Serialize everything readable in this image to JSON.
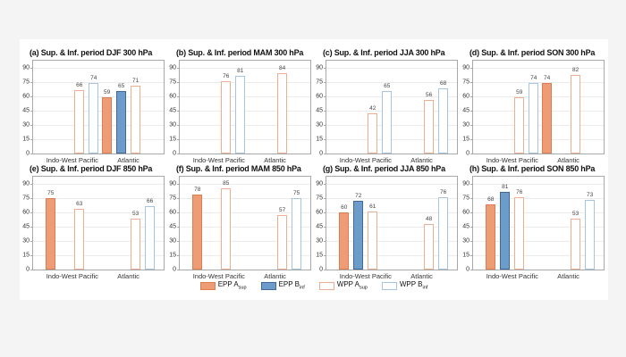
{
  "figure": {
    "page_background": "#f4f4f4",
    "background": "#ffffff"
  },
  "axis": {
    "ylim": [
      0,
      97
    ],
    "yticks": [
      0,
      15,
      30,
      45,
      60,
      75,
      90
    ],
    "categories": [
      "Indo-West Pacific",
      "Atlantic"
    ],
    "grid": true,
    "box_color": "#a8a8a8"
  },
  "series_styles": {
    "EPP A_sup": {
      "fill": "#EE9C76",
      "border": "#DD7E52",
      "filled": true
    },
    "EPP B_inf": {
      "fill": "#6D9BCA",
      "border": "#41689A",
      "filled": true
    },
    "WPP A_sup": {
      "fill": "#FFFFFF",
      "border": "#EFAE8F",
      "filled": false
    },
    "WPP B_inf": {
      "fill": "#FFFFFF",
      "border": "#A6C5E2",
      "filled": false
    }
  },
  "legend": {
    "position": "bottom-center",
    "items": [
      {
        "series": "EPP A_sup",
        "name": "EPP A",
        "subscript": "sup"
      },
      {
        "series": "EPP B_inf",
        "name": "EPP B",
        "subscript": "inf"
      },
      {
        "series": "WPP A_sup",
        "name": "WPP A",
        "subscript": "sup"
      },
      {
        "series": "WPP B_inf",
        "name": "WPP B",
        "subscript": "inf"
      }
    ]
  },
  "chart_data": [
    {
      "id": "a",
      "type": "bar",
      "title": "(a) Sup. & Inf. period DJF 300 hPa",
      "ylim": [
        0,
        97
      ],
      "yticks": [
        0,
        15,
        30,
        45,
        60,
        75,
        90
      ],
      "groups": [
        {
          "category": "Indo-West Pacific",
          "bars": [
            {
              "series": "WPP A_sup",
              "value": 66
            },
            {
              "series": "WPP B_inf",
              "value": 74
            }
          ]
        },
        {
          "category": "Atlantic",
          "bars": [
            {
              "series": "EPP A_sup",
              "value": 59
            },
            {
              "series": "EPP B_inf",
              "value": 65
            },
            {
              "series": "WPP A_sup",
              "value": 71
            }
          ]
        }
      ]
    },
    {
      "id": "b",
      "type": "bar",
      "title": "(b) Sup. & Inf. period MAM 300 hPa",
      "ylim": [
        0,
        97
      ],
      "yticks": [
        0,
        15,
        30,
        45,
        60,
        75,
        90
      ],
      "groups": [
        {
          "category": "Indo-West Pacific",
          "bars": [
            {
              "series": "WPP A_sup",
              "value": 76
            },
            {
              "series": "WPP B_inf",
              "value": 81
            }
          ]
        },
        {
          "category": "Atlantic",
          "bars": [
            {
              "series": "WPP A_sup",
              "value": 84
            }
          ]
        }
      ]
    },
    {
      "id": "c",
      "type": "bar",
      "title": "(c) Sup. & Inf. period JJA 300 hPa",
      "ylim": [
        0,
        97
      ],
      "yticks": [
        0,
        15,
        30,
        45,
        60,
        75,
        90
      ],
      "groups": [
        {
          "category": "Indo-West Pacific",
          "bars": [
            {
              "series": "WPP A_sup",
              "value": 42
            },
            {
              "series": "WPP B_inf",
              "value": 65
            }
          ]
        },
        {
          "category": "Atlantic",
          "bars": [
            {
              "series": "WPP A_sup",
              "value": 56
            },
            {
              "series": "WPP B_inf",
              "value": 68
            }
          ]
        }
      ]
    },
    {
      "id": "d",
      "type": "bar",
      "title": "(d) Sup. & Inf. period SON 300 hPa",
      "ylim": [
        0,
        97
      ],
      "yticks": [
        0,
        15,
        30,
        45,
        60,
        75,
        90
      ],
      "groups": [
        {
          "category": "Indo-West Pacific",
          "bars": [
            {
              "series": "WPP A_sup",
              "value": 59
            },
            {
              "series": "WPP B_inf",
              "value": 74
            }
          ]
        },
        {
          "category": "Atlantic",
          "bars": [
            {
              "series": "EPP A_sup",
              "value": 74
            },
            {
              "series": "WPP A_sup",
              "value": 82
            }
          ]
        }
      ]
    },
    {
      "id": "e",
      "type": "bar",
      "title": "(e) Sup. & Inf. period DJF 850 hPa",
      "ylim": [
        0,
        97
      ],
      "yticks": [
        0,
        15,
        30,
        45,
        60,
        75,
        90
      ],
      "groups": [
        {
          "category": "Indo-West Pacific",
          "bars": [
            {
              "series": "EPP A_sup",
              "value": 75
            },
            {
              "series": "WPP A_sup",
              "value": 63
            }
          ]
        },
        {
          "category": "Atlantic",
          "bars": [
            {
              "series": "WPP A_sup",
              "value": 53
            },
            {
              "series": "WPP B_inf",
              "value": 66
            }
          ]
        }
      ]
    },
    {
      "id": "f",
      "type": "bar",
      "title": "(f) Sup. & Inf. period MAM 850 hPa",
      "ylim": [
        0,
        97
      ],
      "yticks": [
        0,
        15,
        30,
        45,
        60,
        75,
        90
      ],
      "groups": [
        {
          "category": "Indo-West Pacific",
          "bars": [
            {
              "series": "EPP A_sup",
              "value": 78
            },
            {
              "series": "WPP A_sup",
              "value": 85
            }
          ]
        },
        {
          "category": "Atlantic",
          "bars": [
            {
              "series": "WPP A_sup",
              "value": 57
            },
            {
              "series": "WPP B_inf",
              "value": 75
            }
          ]
        }
      ]
    },
    {
      "id": "g",
      "type": "bar",
      "title": "(g) Sup. & Inf. period JJA 850 hPa",
      "ylim": [
        0,
        97
      ],
      "yticks": [
        0,
        15,
        30,
        45,
        60,
        75,
        90
      ],
      "groups": [
        {
          "category": "Indo-West Pacific",
          "bars": [
            {
              "series": "EPP A_sup",
              "value": 60
            },
            {
              "series": "EPP B_inf",
              "value": 72
            },
            {
              "series": "WPP A_sup",
              "value": 61
            }
          ]
        },
        {
          "category": "Atlantic",
          "bars": [
            {
              "series": "WPP A_sup",
              "value": 48
            },
            {
              "series": "WPP B_inf",
              "value": 76
            }
          ]
        }
      ]
    },
    {
      "id": "h",
      "type": "bar",
      "title": "(h) Sup. & Inf. period SON 850 hPa",
      "ylim": [
        0,
        97
      ],
      "yticks": [
        0,
        15,
        30,
        45,
        60,
        75,
        90
      ],
      "groups": [
        {
          "category": "Indo-West Pacific",
          "bars": [
            {
              "series": "EPP A_sup",
              "value": 68
            },
            {
              "series": "EPP B_inf",
              "value": 81
            },
            {
              "series": "WPP A_sup",
              "value": 76
            }
          ]
        },
        {
          "category": "Atlantic",
          "bars": [
            {
              "series": "WPP A_sup",
              "value": 53
            },
            {
              "series": "WPP B_inf",
              "value": 73
            }
          ]
        }
      ]
    }
  ]
}
